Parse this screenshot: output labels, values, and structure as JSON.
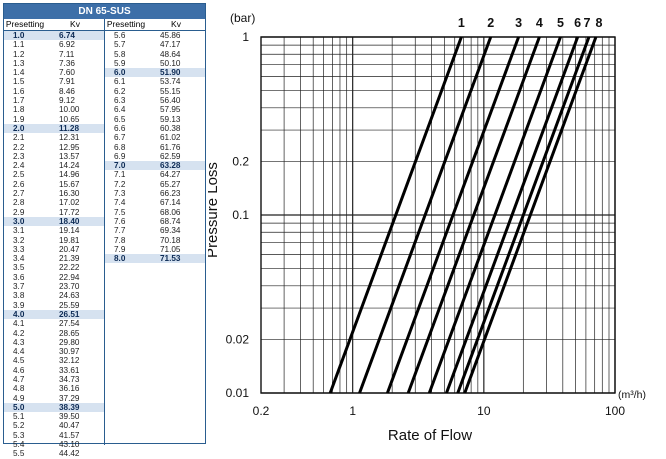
{
  "table": {
    "title": "DN 65-SUS",
    "headers": [
      "Presetting",
      "Kv"
    ],
    "left_rows": [
      [
        "1.0",
        "6.74"
      ],
      [
        "1.1",
        "6.92"
      ],
      [
        "1.2",
        "7.11"
      ],
      [
        "1.3",
        "7.36"
      ],
      [
        "1.4",
        "7.60"
      ],
      [
        "1.5",
        "7.91"
      ],
      [
        "1.6",
        "8.46"
      ],
      [
        "1.7",
        "9.12"
      ],
      [
        "1.8",
        "10.00"
      ],
      [
        "1.9",
        "10.65"
      ],
      [
        "2.0",
        "11.28"
      ],
      [
        "2.1",
        "12.31"
      ],
      [
        "2.2",
        "12.95"
      ],
      [
        "2.3",
        "13.57"
      ],
      [
        "2.4",
        "14.24"
      ],
      [
        "2.5",
        "14.96"
      ],
      [
        "2.6",
        "15.67"
      ],
      [
        "2.7",
        "16.30"
      ],
      [
        "2.8",
        "17.02"
      ],
      [
        "2.9",
        "17.72"
      ],
      [
        "3.0",
        "18.40"
      ],
      [
        "3.1",
        "19.14"
      ],
      [
        "3.2",
        "19.81"
      ],
      [
        "3.3",
        "20.47"
      ],
      [
        "3.4",
        "21.39"
      ],
      [
        "3.5",
        "22.22"
      ],
      [
        "3.6",
        "22.94"
      ],
      [
        "3.7",
        "23.70"
      ],
      [
        "3.8",
        "24.63"
      ],
      [
        "3.9",
        "25.59"
      ],
      [
        "4.0",
        "26.51"
      ],
      [
        "4.1",
        "27.54"
      ],
      [
        "4.2",
        "28.65"
      ],
      [
        "4.3",
        "29.80"
      ],
      [
        "4.4",
        "30.97"
      ],
      [
        "4.5",
        "32.12"
      ],
      [
        "4.6",
        "33.61"
      ],
      [
        "4.7",
        "34.73"
      ],
      [
        "4.8",
        "36.16"
      ],
      [
        "4.9",
        "37.29"
      ],
      [
        "5.0",
        "38.39"
      ],
      [
        "5.1",
        "39.50"
      ],
      [
        "5.2",
        "40.47"
      ],
      [
        "5.3",
        "41.57"
      ],
      [
        "5.4",
        "43.10"
      ],
      [
        "5.5",
        "44.42"
      ]
    ],
    "right_rows": [
      [
        "5.6",
        "45.86"
      ],
      [
        "5.7",
        "47.17"
      ],
      [
        "5.8",
        "48.64"
      ],
      [
        "5.9",
        "50.10"
      ],
      [
        "6.0",
        "51.90"
      ],
      [
        "6.1",
        "53.74"
      ],
      [
        "6.2",
        "55.15"
      ],
      [
        "6.3",
        "56.40"
      ],
      [
        "6.4",
        "57.95"
      ],
      [
        "6.5",
        "59.13"
      ],
      [
        "6.6",
        "60.38"
      ],
      [
        "6.7",
        "61.02"
      ],
      [
        "6.8",
        "61.76"
      ],
      [
        "6.9",
        "62.59"
      ],
      [
        "7.0",
        "63.28"
      ],
      [
        "7.1",
        "64.27"
      ],
      [
        "7.2",
        "65.27"
      ],
      [
        "7.3",
        "66.23"
      ],
      [
        "7.4",
        "67.14"
      ],
      [
        "7.5",
        "68.06"
      ],
      [
        "7.6",
        "68.74"
      ],
      [
        "7.7",
        "69.34"
      ],
      [
        "7.8",
        "70.18"
      ],
      [
        "7.9",
        "71.05"
      ],
      [
        "8.0",
        "71.53"
      ]
    ],
    "highlight_presettings": [
      "1.0",
      "2.0",
      "3.0",
      "4.0",
      "5.0",
      "6.0",
      "7.0",
      "8.0"
    ],
    "header_color": "#3d6fa8",
    "highlight_color": "#d6e2f0"
  },
  "chart_data": {
    "type": "line",
    "x_scale": "log",
    "y_scale": "log",
    "xlim": [
      0.2,
      100
    ],
    "ylim": [
      0.01,
      1
    ],
    "xlabel": "Rate of Flow",
    "ylabel": "Pressure Loss",
    "x_unit": "(m³/h)",
    "y_unit": "(bar)",
    "x_ticks": [
      "0.2",
      "1",
      "10",
      "100"
    ],
    "y_ticks": [
      "0.01",
      "0.02",
      "0.1",
      "0.2",
      "1"
    ],
    "grid": true,
    "series": [
      {
        "name": "1",
        "kv": 6.74,
        "points": [
          [
            0.674,
            0.01
          ],
          [
            6.74,
            1
          ]
        ]
      },
      {
        "name": "2",
        "kv": 11.28,
        "points": [
          [
            1.128,
            0.01
          ],
          [
            11.28,
            1
          ]
        ]
      },
      {
        "name": "3",
        "kv": 18.4,
        "points": [
          [
            1.84,
            0.01
          ],
          [
            18.4,
            1
          ]
        ]
      },
      {
        "name": "4",
        "kv": 26.51,
        "points": [
          [
            2.651,
            0.01
          ],
          [
            26.51,
            1
          ]
        ]
      },
      {
        "name": "5",
        "kv": 38.39,
        "points": [
          [
            3.839,
            0.01
          ],
          [
            38.39,
            1
          ]
        ]
      },
      {
        "name": "6",
        "kv": 51.9,
        "points": [
          [
            5.19,
            0.01
          ],
          [
            51.9,
            1
          ]
        ]
      },
      {
        "name": "7",
        "kv": 63.28,
        "points": [
          [
            6.328,
            0.01
          ],
          [
            63.28,
            1
          ]
        ]
      },
      {
        "name": "8",
        "kv": 71.53,
        "points": [
          [
            7.153,
            0.01
          ],
          [
            71.53,
            1
          ]
        ]
      }
    ]
  }
}
